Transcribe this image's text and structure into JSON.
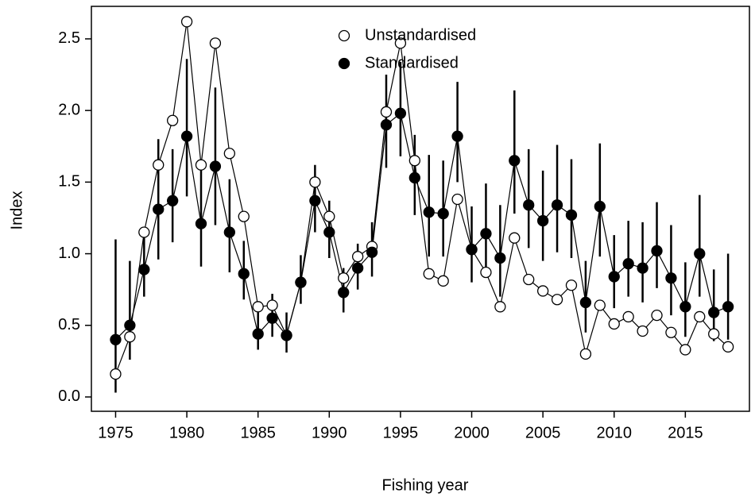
{
  "chart_data": {
    "type": "line",
    "x_label": "Fishing year",
    "y_label": "Index",
    "x": [
      1975,
      1976,
      1977,
      1978,
      1979,
      1980,
      1981,
      1982,
      1983,
      1984,
      1985,
      1986,
      1987,
      1988,
      1989,
      1990,
      1991,
      1992,
      1993,
      1994,
      1995,
      1996,
      1997,
      1998,
      1999,
      2000,
      2001,
      2002,
      2003,
      2004,
      2005,
      2006,
      2007,
      2008,
      2009,
      2010,
      2011,
      2012,
      2013,
      2014,
      2015,
      2016,
      2017,
      2018
    ],
    "series": [
      {
        "name": "Unstandardised",
        "color": "#000000",
        "marker": "open",
        "values": [
          0.16,
          0.42,
          1.15,
          1.62,
          1.93,
          2.62,
          1.62,
          2.47,
          1.7,
          1.26,
          0.63,
          0.64,
          0.43,
          0.8,
          1.5,
          1.26,
          0.83,
          0.98,
          1.05,
          1.99,
          2.47,
          1.65,
          0.86,
          0.81,
          1.38,
          1.03,
          0.87,
          0.63,
          1.11,
          0.82,
          0.74,
          0.68,
          0.78,
          0.3,
          0.64,
          0.51,
          0.56,
          0.46,
          0.57,
          0.45,
          0.33,
          0.56,
          0.44,
          0.35
        ]
      },
      {
        "name": "Standardised",
        "color": "#000000",
        "marker": "filled",
        "values": [
          0.4,
          0.5,
          0.89,
          1.31,
          1.37,
          1.82,
          1.21,
          1.61,
          1.15,
          0.86,
          0.44,
          0.55,
          0.43,
          0.8,
          1.37,
          1.15,
          0.73,
          0.9,
          1.01,
          1.9,
          1.98,
          1.53,
          1.29,
          1.28,
          1.82,
          1.03,
          1.14,
          0.97,
          1.65,
          1.34,
          1.23,
          1.34,
          1.27,
          0.66,
          1.33,
          0.84,
          0.93,
          0.9,
          1.02,
          0.83,
          0.63,
          1.0,
          0.59,
          0.63
        ],
        "lower": [
          0.03,
          0.26,
          0.7,
          0.96,
          1.08,
          1.4,
          0.91,
          1.2,
          0.87,
          0.68,
          0.33,
          0.42,
          0.31,
          0.65,
          1.15,
          0.97,
          0.59,
          0.75,
          0.84,
          1.6,
          1.68,
          1.27,
          0.98,
          0.98,
          1.5,
          0.8,
          0.87,
          0.7,
          1.28,
          1.04,
          0.95,
          1.01,
          0.97,
          0.45,
          0.98,
          0.62,
          0.7,
          0.66,
          0.76,
          0.57,
          0.42,
          0.7,
          0.39,
          0.4
        ],
        "upper": [
          1.1,
          0.95,
          1.13,
          1.8,
          1.73,
          2.36,
          1.61,
          2.16,
          1.52,
          1.09,
          0.59,
          0.72,
          0.59,
          0.99,
          1.62,
          1.37,
          0.9,
          1.07,
          1.22,
          2.25,
          2.34,
          1.83,
          1.69,
          1.65,
          2.2,
          1.33,
          1.49,
          1.34,
          2.14,
          1.73,
          1.58,
          1.76,
          1.66,
          0.95,
          1.77,
          1.13,
          1.23,
          1.22,
          1.36,
          1.2,
          0.94,
          1.41,
          0.89,
          1.0
        ]
      }
    ],
    "xlim": [
      1973.3,
      2019.5
    ],
    "ylim": [
      -0.1,
      2.727
    ],
    "xticks": [
      1975,
      1980,
      1985,
      1990,
      1995,
      2000,
      2005,
      2010,
      2015
    ],
    "yticks": [
      {
        "value": 0,
        "label": "0.0"
      },
      0.5,
      {
        "value": 1,
        "label": "1.0"
      },
      1.5,
      {
        "value": 2,
        "label": "2.0"
      },
      2.5
    ],
    "legend": "top"
  }
}
